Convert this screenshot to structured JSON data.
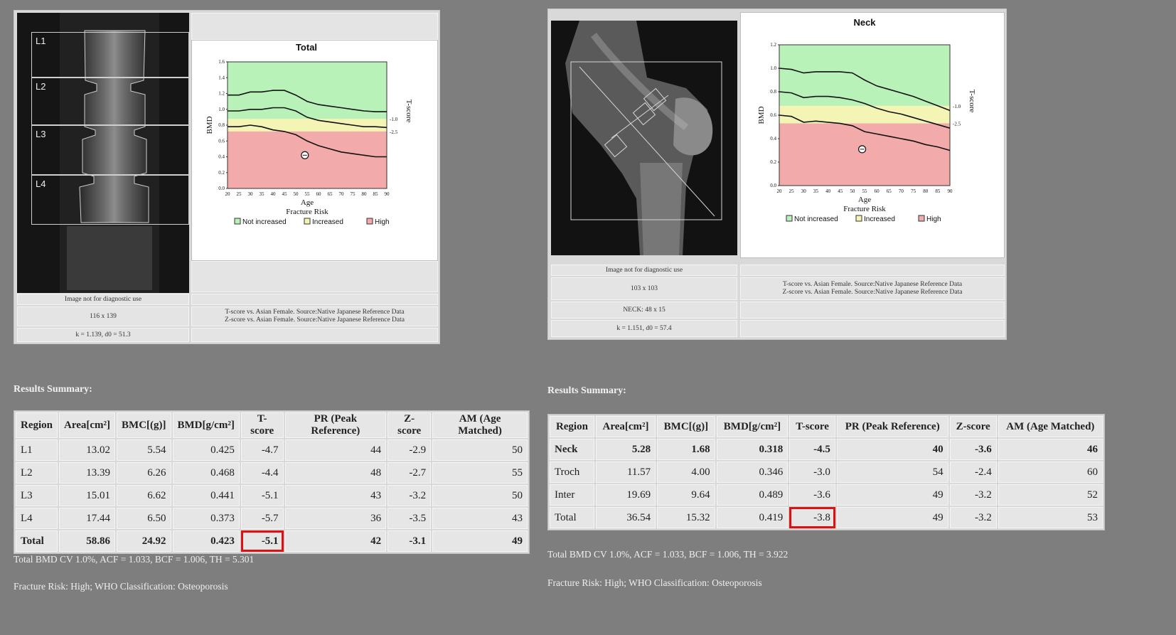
{
  "left": {
    "scan": {
      "vertebra_labels": [
        "L1",
        "L2",
        "L3",
        "L4"
      ]
    },
    "chart": {
      "title": "Total",
      "ylabel": "BMD",
      "xlabel": "Age",
      "subtitle": "Fracture Risk",
      "tscore_label": "T-score",
      "tscore_ticks": [
        "-1.0",
        "-2.5"
      ],
      "yticks": [
        "1.6",
        "1.4",
        "1.2",
        "1.0",
        "0.8",
        "0.6",
        "0.4",
        "0.2",
        "0.0"
      ],
      "xticks": [
        "20",
        "25",
        "30",
        "35",
        "40",
        "45",
        "50",
        "55",
        "60",
        "65",
        "70",
        "75",
        "80",
        "85",
        "90"
      ],
      "legend": [
        "Not increased",
        "Increased",
        "High"
      ],
      "colors": {
        "green": "#b9f2b9",
        "yellow": "#f4f4b4",
        "red": "#f3aaaa"
      }
    },
    "info": {
      "diag": "Image not for diagnostic use",
      "size": "116 x 139",
      "kd": "k = 1.139, d0 = 51.3",
      "ref": "T-score vs. Asian Female. Source:Native Japanese Reference Data\nZ-score vs. Asian Female. Source:Native Japanese Reference Data"
    },
    "summary_title": "Results Summary:",
    "table": {
      "headers": [
        "Region",
        "Area[cm²]",
        "BMC[(g)]",
        "BMD[g/cm²]",
        "T-score",
        "PR (Peak Reference)",
        "Z-score",
        "AM (Age Matched)"
      ],
      "rows": [
        [
          "L1",
          "13.02",
          "5.54",
          "0.425",
          "-4.7",
          "44",
          "-2.9",
          "50"
        ],
        [
          "L2",
          "13.39",
          "6.26",
          "0.468",
          "-4.4",
          "48",
          "-2.7",
          "55"
        ],
        [
          "L3",
          "15.01",
          "6.62",
          "0.441",
          "-5.1",
          "43",
          "-3.2",
          "50"
        ],
        [
          "L4",
          "17.44",
          "6.50",
          "0.373",
          "-5.7",
          "36",
          "-3.5",
          "43"
        ],
        [
          "Total",
          "58.86",
          "24.92",
          "0.423",
          "-5.1",
          "42",
          "-3.1",
          "49"
        ]
      ]
    },
    "cv_note": "Total BMD CV 1.0%, ACF = 1.033, BCF = 1.006, TH = 5.301",
    "risk_note": "Fracture Risk: High; WHO Classification: Osteoporosis"
  },
  "right": {
    "chart": {
      "title": "Neck",
      "ylabel": "BMD",
      "xlabel": "Age",
      "subtitle": "Fracture Risk",
      "tscore_label": "T-score",
      "tscore_ticks": [
        "-1.0",
        "-2.5"
      ],
      "yticks": [
        "1.2",
        "1.0",
        "0.8",
        "0.6",
        "0.4",
        "0.2",
        "0.0"
      ],
      "xticks": [
        "20",
        "25",
        "30",
        "35",
        "40",
        "45",
        "50",
        "55",
        "60",
        "65",
        "70",
        "75",
        "80",
        "85",
        "90"
      ],
      "legend": [
        "Not increased",
        "Increased",
        "High"
      ]
    },
    "info": {
      "diag": "Image not for diagnostic use",
      "size": "103 x 103",
      "neck": "NECK: 48 x 15",
      "kd": "k = 1.151, d0 = 57.4",
      "ref": "T-score vs. Asian Female. Source:Native Japanese Reference Data\nZ-score vs. Asian Female. Source:Native Japanese Reference Data"
    },
    "summary_title": "Results Summary:",
    "table": {
      "headers": [
        "Region",
        "Area[cm²]",
        "BMC[(g)]",
        "BMD[g/cm²]",
        "T-score",
        "PR (Peak Reference)",
        "Z-score",
        "AM (Age Matched)"
      ],
      "rows": [
        [
          "Neck",
          "5.28",
          "1.68",
          "0.318",
          "-4.5",
          "40",
          "-3.6",
          "46"
        ],
        [
          "Troch",
          "11.57",
          "4.00",
          "0.346",
          "-3.0",
          "54",
          "-2.4",
          "60"
        ],
        [
          "Inter",
          "19.69",
          "9.64",
          "0.489",
          "-3.6",
          "49",
          "-3.2",
          "52"
        ],
        [
          "Total",
          "36.54",
          "15.32",
          "0.419",
          "-3.8",
          "49",
          "-3.2",
          "53"
        ]
      ]
    },
    "cv_note": "Total BMD CV 1.0%, ACF = 1.033, BCF = 1.006, TH = 3.922",
    "risk_note": "Fracture Risk: High; WHO Classification: Osteoporosis"
  }
}
